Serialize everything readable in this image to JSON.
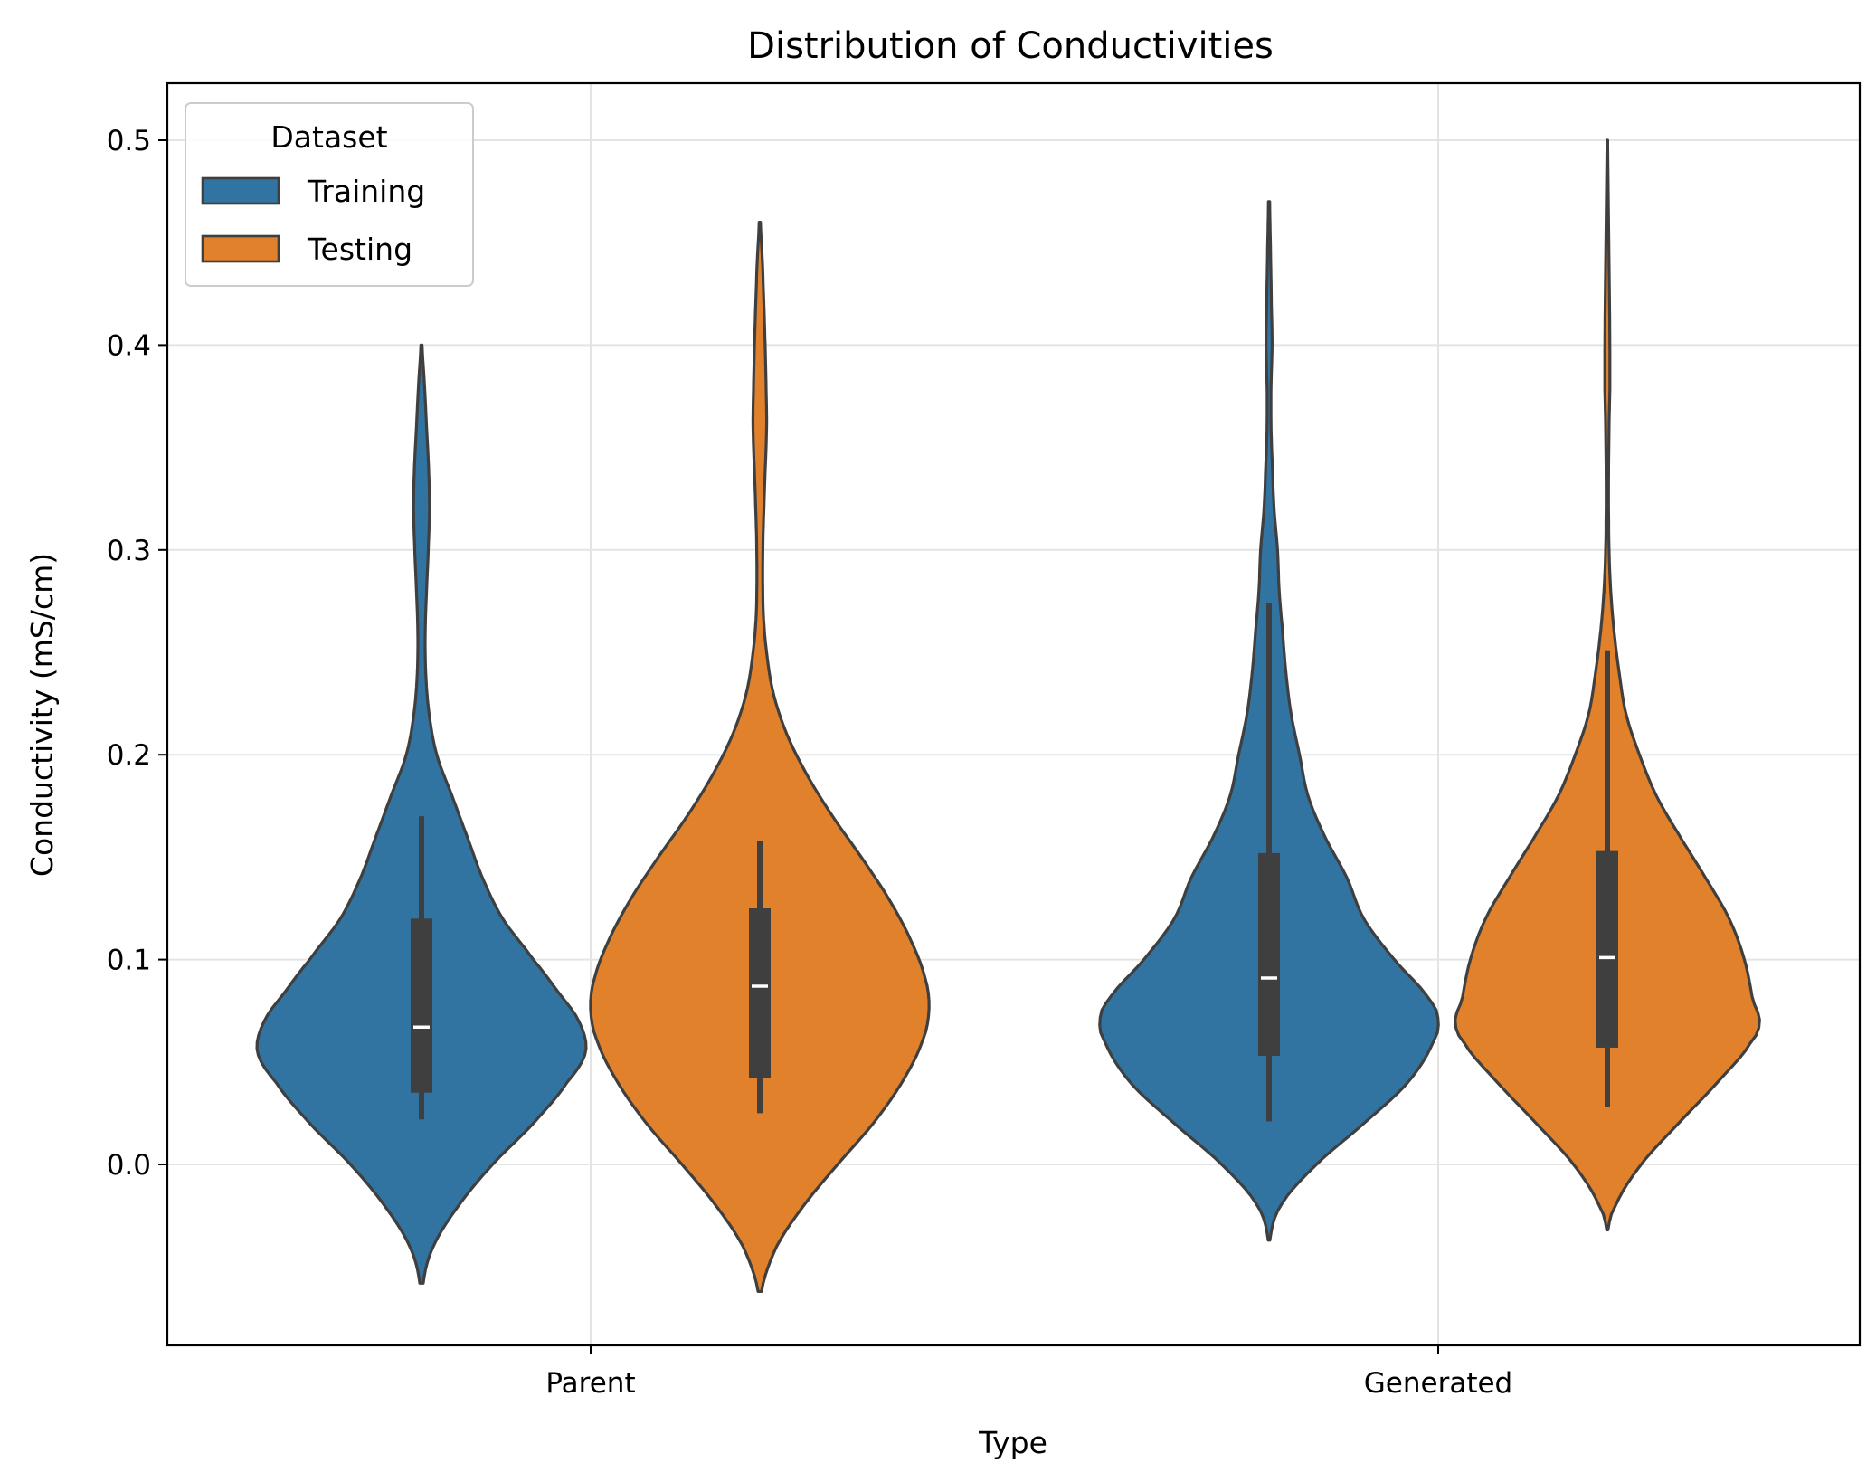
{
  "chart_data": {
    "type": "violin",
    "title": "Distribution of Conductivities",
    "xlabel": "Type",
    "ylabel": "Conductivity (mS/cm)",
    "categories": [
      "Parent",
      "Generated"
    ],
    "ylim": [
      -0.085,
      0.53
    ],
    "yticks": [
      "0.0",
      "0.1",
      "0.2",
      "0.3",
      "0.4",
      "0.5"
    ],
    "grid": true,
    "legend": {
      "title": "Dataset",
      "position": "top-left",
      "entries": [
        "Training",
        "Testing"
      ]
    },
    "colors": {
      "Training": "#3274a1",
      "Testing": "#e1812c",
      "outline": "#3f3f3f"
    },
    "series": [
      {
        "name": "Training",
        "violins": [
          {
            "category": "Parent",
            "min_extent": -0.058,
            "max_extent": 0.4,
            "median": 0.067,
            "q1": 0.035,
            "q3": 0.12,
            "whisker_low": 0.022,
            "whisker_high": 0.17,
            "density": [
              [
                -0.058,
                0.01
              ],
              [
                -0.04,
                0.07
              ],
              [
                -0.02,
                0.22
              ],
              [
                0.0,
                0.42
              ],
              [
                0.02,
                0.66
              ],
              [
                0.04,
                0.86
              ],
              [
                0.055,
                0.97
              ],
              [
                0.07,
                0.93
              ],
              [
                0.085,
                0.8
              ],
              [
                0.1,
                0.66
              ],
              [
                0.12,
                0.48
              ],
              [
                0.14,
                0.36
              ],
              [
                0.16,
                0.27
              ],
              [
                0.18,
                0.18
              ],
              [
                0.2,
                0.09
              ],
              [
                0.22,
                0.045
              ],
              [
                0.24,
                0.025
              ],
              [
                0.26,
                0.022
              ],
              [
                0.28,
                0.03
              ],
              [
                0.3,
                0.04
              ],
              [
                0.32,
                0.047
              ],
              [
                0.34,
                0.042
              ],
              [
                0.36,
                0.03
              ],
              [
                0.38,
                0.018
              ],
              [
                0.4,
                0.004
              ]
            ]
          },
          {
            "category": "Generated",
            "min_extent": -0.037,
            "max_extent": 0.47,
            "median": 0.091,
            "q1": 0.053,
            "q3": 0.152,
            "whisker_low": 0.021,
            "whisker_high": 0.274,
            "density": [
              [
                -0.037,
                0.005
              ],
              [
                -0.02,
                0.07
              ],
              [
                0.0,
                0.28
              ],
              [
                0.02,
                0.56
              ],
              [
                0.04,
                0.82
              ],
              [
                0.06,
                0.97
              ],
              [
                0.07,
                1.0
              ],
              [
                0.08,
                0.95
              ],
              [
                0.1,
                0.74
              ],
              [
                0.12,
                0.56
              ],
              [
                0.14,
                0.46
              ],
              [
                0.16,
                0.33
              ],
              [
                0.18,
                0.23
              ],
              [
                0.2,
                0.18
              ],
              [
                0.22,
                0.13
              ],
              [
                0.24,
                0.1
              ],
              [
                0.26,
                0.08
              ],
              [
                0.28,
                0.06
              ],
              [
                0.3,
                0.05
              ],
              [
                0.32,
                0.03
              ],
              [
                0.34,
                0.02
              ],
              [
                0.36,
                0.012
              ],
              [
                0.38,
                0.012
              ],
              [
                0.4,
                0.018
              ],
              [
                0.42,
                0.014
              ],
              [
                0.44,
                0.01
              ],
              [
                0.47,
                0.004
              ]
            ]
          }
        ]
      },
      {
        "name": "Testing",
        "violins": [
          {
            "category": "Parent",
            "min_extent": -0.062,
            "max_extent": 0.46,
            "median": 0.087,
            "q1": 0.042,
            "q3": 0.125,
            "whisker_low": 0.025,
            "whisker_high": 0.158,
            "density": [
              [
                -0.062,
                0.01
              ],
              [
                -0.04,
                0.1
              ],
              [
                -0.02,
                0.26
              ],
              [
                0.0,
                0.46
              ],
              [
                0.02,
                0.67
              ],
              [
                0.04,
                0.84
              ],
              [
                0.06,
                0.96
              ],
              [
                0.075,
                1.0
              ],
              [
                0.09,
                0.98
              ],
              [
                0.11,
                0.89
              ],
              [
                0.13,
                0.76
              ],
              [
                0.15,
                0.6
              ],
              [
                0.17,
                0.43
              ],
              [
                0.19,
                0.28
              ],
              [
                0.21,
                0.16
              ],
              [
                0.23,
                0.08
              ],
              [
                0.25,
                0.04
              ],
              [
                0.27,
                0.02
              ],
              [
                0.3,
                0.018
              ],
              [
                0.33,
                0.028
              ],
              [
                0.36,
                0.04
              ],
              [
                0.38,
                0.037
              ],
              [
                0.41,
                0.028
              ],
              [
                0.44,
                0.016
              ],
              [
                0.46,
                0.004
              ]
            ]
          },
          {
            "category": "Generated",
            "min_extent": -0.032,
            "max_extent": 0.5,
            "median": 0.101,
            "q1": 0.057,
            "q3": 0.153,
            "whisker_low": 0.028,
            "whisker_high": 0.251,
            "density": [
              [
                -0.032,
                0.004
              ],
              [
                -0.02,
                0.05
              ],
              [
                0.0,
                0.2
              ],
              [
                0.02,
                0.42
              ],
              [
                0.04,
                0.65
              ],
              [
                0.06,
                0.85
              ],
              [
                0.07,
                0.9
              ],
              [
                0.08,
                0.86
              ],
              [
                0.1,
                0.81
              ],
              [
                0.12,
                0.72
              ],
              [
                0.14,
                0.58
              ],
              [
                0.16,
                0.43
              ],
              [
                0.18,
                0.29
              ],
              [
                0.2,
                0.19
              ],
              [
                0.22,
                0.11
              ],
              [
                0.24,
                0.07
              ],
              [
                0.26,
                0.04
              ],
              [
                0.28,
                0.02
              ],
              [
                0.3,
                0.01
              ],
              [
                0.33,
                0.007
              ],
              [
                0.36,
                0.01
              ],
              [
                0.38,
                0.015
              ],
              [
                0.41,
                0.014
              ],
              [
                0.44,
                0.01
              ],
              [
                0.47,
                0.006
              ],
              [
                0.5,
                0.002
              ]
            ]
          }
        ]
      }
    ]
  }
}
